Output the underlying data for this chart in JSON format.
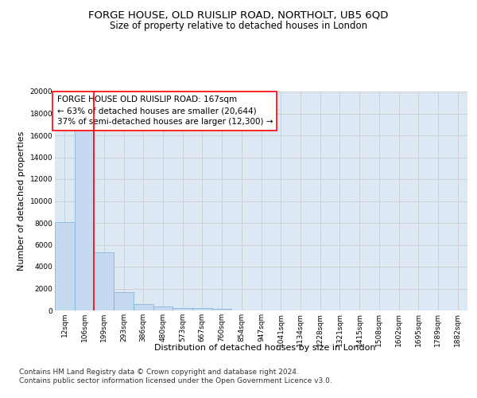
{
  "title": "FORGE HOUSE, OLD RUISLIP ROAD, NORTHOLT, UB5 6QD",
  "subtitle": "Size of property relative to detached houses in London",
  "xlabel": "Distribution of detached houses by size in London",
  "ylabel": "Number of detached properties",
  "categories": [
    "12sqm",
    "106sqm",
    "199sqm",
    "293sqm",
    "386sqm",
    "480sqm",
    "573sqm",
    "667sqm",
    "760sqm",
    "854sqm",
    "947sqm",
    "1041sqm",
    "1134sqm",
    "1228sqm",
    "1321sqm",
    "1415sqm",
    "1508sqm",
    "1602sqm",
    "1695sqm",
    "1789sqm",
    "1882sqm"
  ],
  "values": [
    8100,
    16600,
    5300,
    1700,
    600,
    350,
    250,
    200,
    150,
    0,
    0,
    0,
    0,
    0,
    0,
    0,
    0,
    0,
    0,
    0,
    0
  ],
  "bar_color": "#c5d9f0",
  "bar_edge_color": "#7bafd4",
  "bar_edge_width": 0.5,
  "annotation_text": "FORGE HOUSE OLD RUISLIP ROAD: 167sqm\n← 63% of detached houses are smaller (20,644)\n37% of semi-detached houses are larger (12,300) →",
  "annotation_box_color": "#ffffff",
  "annotation_box_edge_color": "red",
  "vline_x": 1.5,
  "vline_color": "red",
  "vline_lw": 1.2,
  "ylim": [
    0,
    20000
  ],
  "yticks": [
    0,
    2000,
    4000,
    6000,
    8000,
    10000,
    12000,
    14000,
    16000,
    18000,
    20000
  ],
  "grid_color": "#cccccc",
  "bg_color": "#dce9f5",
  "footer1": "Contains HM Land Registry data © Crown copyright and database right 2024.",
  "footer2": "Contains public sector information licensed under the Open Government Licence v3.0.",
  "title_fontsize": 9.5,
  "subtitle_fontsize": 8.5,
  "axis_label_fontsize": 8,
  "tick_fontsize": 6.5,
  "annotation_fontsize": 7.5,
  "footer_fontsize": 6.5
}
